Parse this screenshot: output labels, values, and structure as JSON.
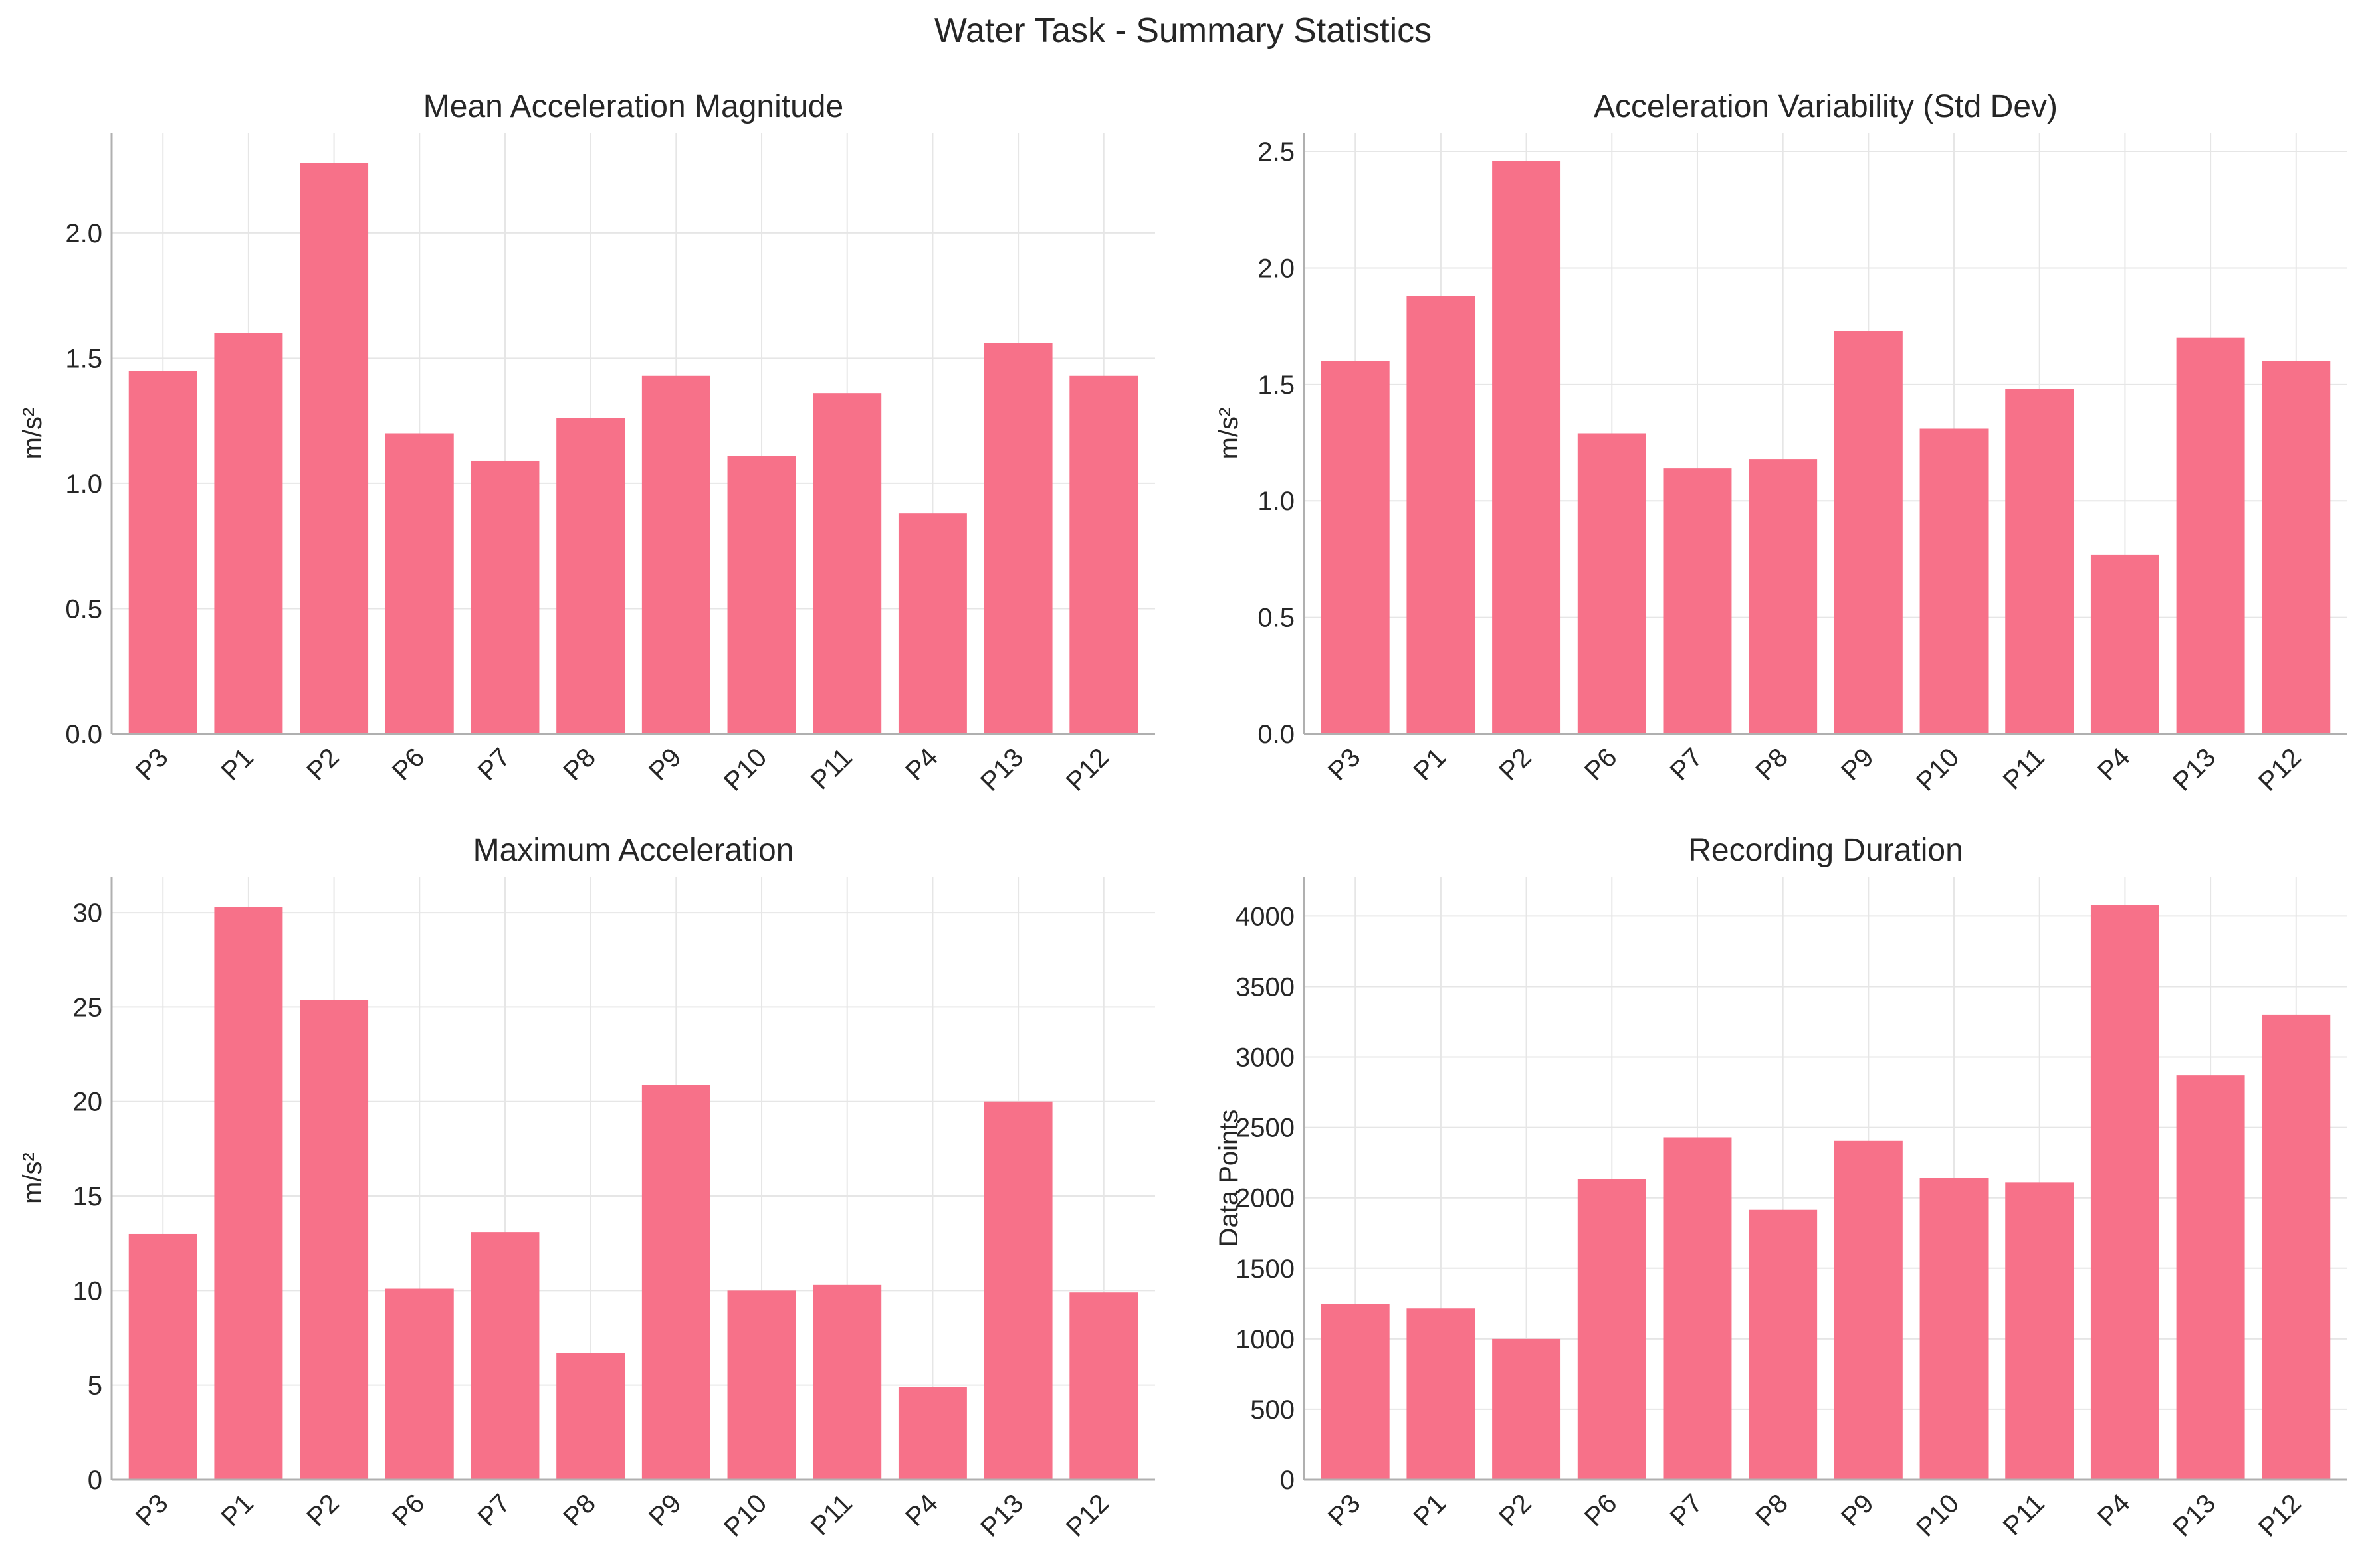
{
  "figure": {
    "title": "Water Task - Summary Statistics"
  },
  "colors": {
    "bar": "#f77189",
    "grid": "#e6e6e6",
    "axis": "#b0b0b0",
    "text": "#262626"
  },
  "chart_data": [
    {
      "type": "bar",
      "title": "Mean Acceleration Magnitude",
      "xlabel": "",
      "ylabel": "m/s²",
      "categories": [
        "P3",
        "P1",
        "P2",
        "P6",
        "P7",
        "P8",
        "P9",
        "P10",
        "P11",
        "P4",
        "P13",
        "P12"
      ],
      "values": [
        1.45,
        1.6,
        2.28,
        1.2,
        1.09,
        1.26,
        1.43,
        1.11,
        1.36,
        0.88,
        1.56,
        1.43
      ],
      "ylim": [
        0,
        2.4
      ],
      "yticks": [
        "0.0",
        "0.5",
        "1.0",
        "1.5",
        "2.0"
      ],
      "ytick_values": [
        0,
        0.5,
        1.0,
        1.5,
        2.0
      ],
      "grid": true,
      "legend": "none"
    },
    {
      "type": "bar",
      "title": "Acceleration Variability (Std Dev)",
      "xlabel": "",
      "ylabel": "m/s²",
      "categories": [
        "P3",
        "P1",
        "P2",
        "P6",
        "P7",
        "P8",
        "P9",
        "P10",
        "P11",
        "P4",
        "P13",
        "P12"
      ],
      "values": [
        1.6,
        1.88,
        2.46,
        1.29,
        1.14,
        1.18,
        1.73,
        1.31,
        1.48,
        0.77,
        1.7,
        1.6
      ],
      "ylim": [
        0,
        2.58
      ],
      "yticks": [
        "0.0",
        "0.5",
        "1.0",
        "1.5",
        "2.0",
        "2.5"
      ],
      "ytick_values": [
        0,
        0.5,
        1.0,
        1.5,
        2.0,
        2.5
      ],
      "grid": true,
      "legend": "none"
    },
    {
      "type": "bar",
      "title": "Maximum Acceleration",
      "xlabel": "",
      "ylabel": "m/s²",
      "categories": [
        "P3",
        "P1",
        "P2",
        "P6",
        "P7",
        "P8",
        "P9",
        "P10",
        "P11",
        "P4",
        "P13",
        "P12"
      ],
      "values": [
        13.0,
        30.3,
        25.4,
        10.1,
        13.1,
        6.7,
        20.9,
        10.0,
        10.3,
        4.9,
        20.0,
        9.9
      ],
      "ylim": [
        0,
        31.9
      ],
      "yticks": [
        "0",
        "5",
        "10",
        "15",
        "20",
        "25",
        "30"
      ],
      "ytick_values": [
        0,
        5,
        10,
        15,
        20,
        25,
        30
      ],
      "grid": true,
      "legend": "none"
    },
    {
      "type": "bar",
      "title": "Recording Duration",
      "xlabel": "",
      "ylabel": "Data Points",
      "categories": [
        "P3",
        "P1",
        "P2",
        "P6",
        "P7",
        "P8",
        "P9",
        "P10",
        "P11",
        "P4",
        "P13",
        "P12"
      ],
      "values": [
        1245,
        1215,
        1000,
        2135,
        2430,
        1915,
        2405,
        2140,
        2110,
        4080,
        2870,
        3300
      ],
      "ylim": [
        0,
        4280
      ],
      "yticks": [
        "0",
        "500",
        "1000",
        "1500",
        "2000",
        "2500",
        "3000",
        "3500",
        "4000"
      ],
      "ytick_values": [
        0,
        500,
        1000,
        1500,
        2000,
        2500,
        3000,
        3500,
        4000
      ],
      "grid": true,
      "legend": "none"
    }
  ]
}
